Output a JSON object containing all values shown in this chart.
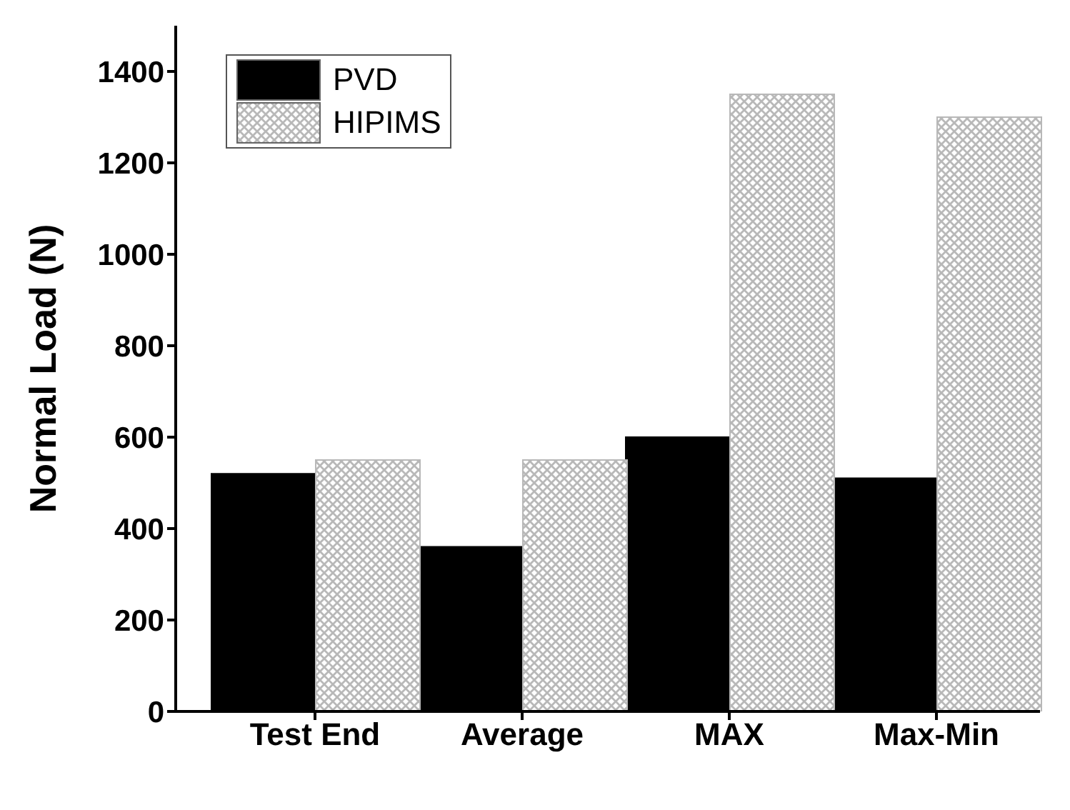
{
  "chart_data": {
    "type": "bar",
    "ylabel": "Normal Load (N)",
    "categories": [
      "Test End",
      "Average",
      "MAX",
      "Max-Min"
    ],
    "series": [
      {
        "name": "PVD",
        "color": "#000000",
        "values": [
          520,
          360,
          600,
          510
        ]
      },
      {
        "name": "HIPIMS",
        "color": "#b8b8b8",
        "values": [
          550,
          550,
          1350,
          1300
        ]
      }
    ],
    "ylim": [
      0,
      1500
    ],
    "yticks": [
      0,
      200,
      400,
      600,
      800,
      1000,
      1200,
      1400
    ],
    "legend": "top left",
    "grid": false
  }
}
